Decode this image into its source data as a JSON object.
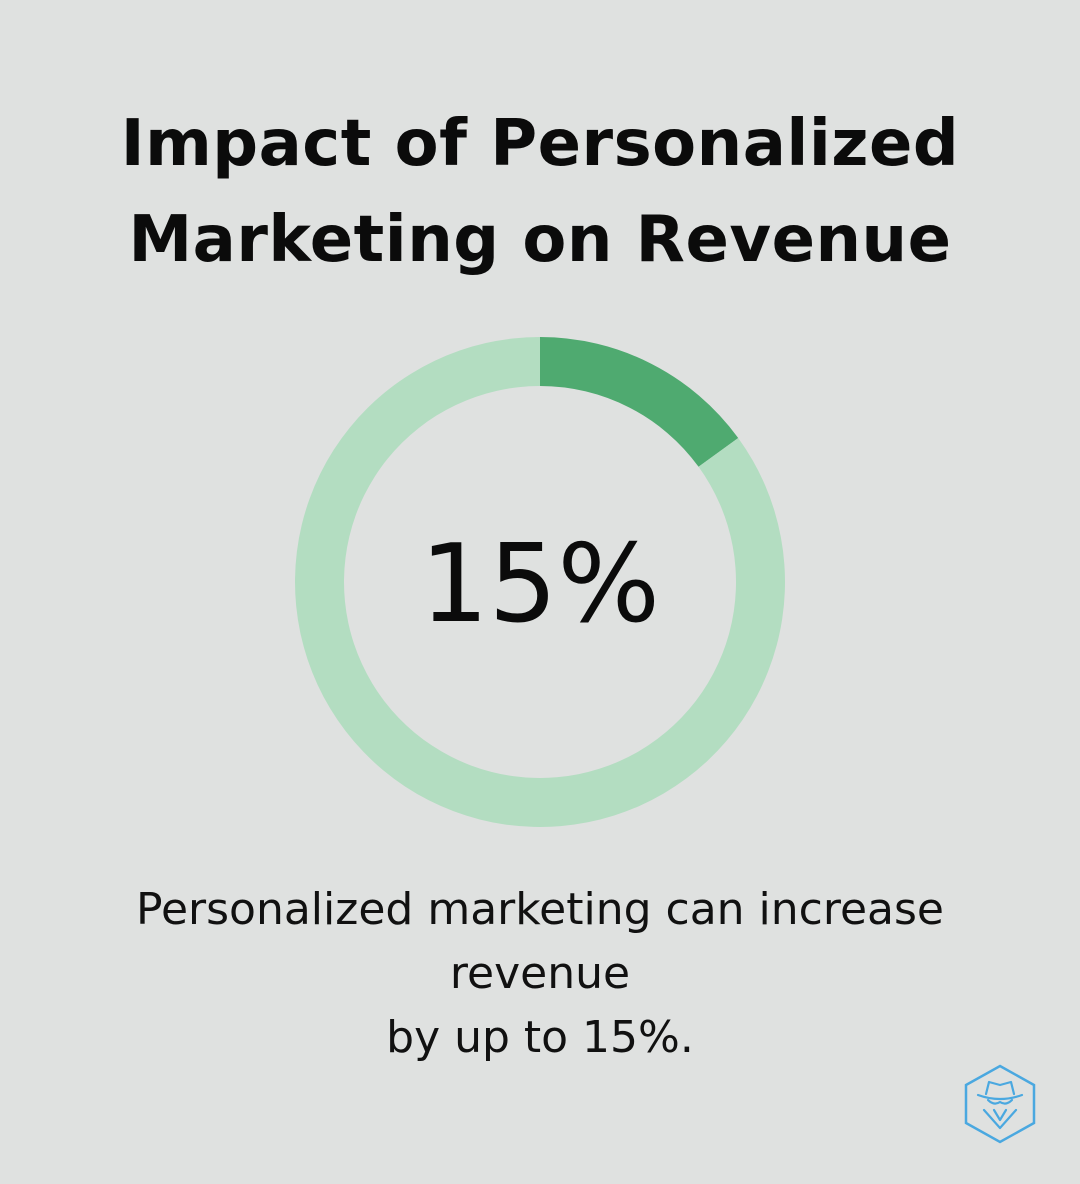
{
  "title": {
    "line1": "Impact of Personalized",
    "line2": "Marketing on Revenue"
  },
  "chart_data": {
    "type": "pie",
    "variant": "donut",
    "value_percent": 15,
    "center_label": "15%",
    "slices": [
      {
        "label": "",
        "value": 15,
        "color": "#4faa70"
      },
      {
        "label": "",
        "value": 85,
        "color": "#b3ddc1"
      }
    ]
  },
  "caption": {
    "line1": "Personalized marketing can increase revenue",
    "line2": "by up to 15%."
  },
  "colors": {
    "background": "#dfe1e0",
    "highlight": "#4faa70",
    "track": "#b3ddc1",
    "logo": "#4aa8e0"
  },
  "logo": {
    "icon": "spy-hat-hexagon-icon"
  }
}
